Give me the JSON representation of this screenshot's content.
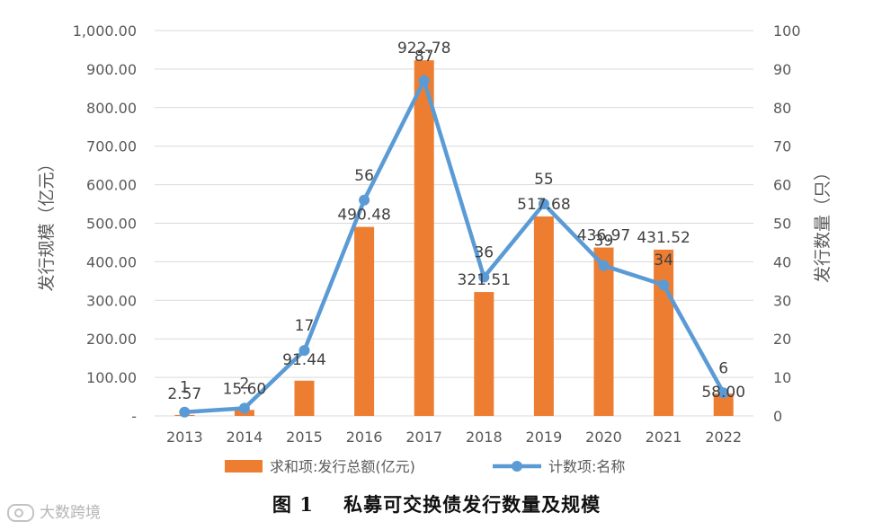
{
  "chart_data": {
    "type": "bar+line",
    "categories": [
      "2013",
      "2014",
      "2015",
      "2016",
      "2017",
      "2018",
      "2019",
      "2020",
      "2021",
      "2022"
    ],
    "series": [
      {
        "name": "求和项:发行总额(亿元)",
        "type": "bar",
        "axis": "left",
        "color": "#ed7d31",
        "values": [
          2.57,
          15.6,
          91.44,
          490.48,
          922.78,
          321.51,
          517.68,
          436.97,
          431.52,
          58.0
        ],
        "labels": [
          "2.57",
          "15.60",
          "91.44",
          "490.48",
          "922.78",
          "321.51",
          "517.68",
          "436.97",
          "431.52",
          "58.00"
        ]
      },
      {
        "name": "计数项:名称",
        "type": "line",
        "axis": "right",
        "color": "#5b9bd5",
        "values": [
          1,
          2,
          17,
          56,
          87,
          36,
          55,
          39,
          34,
          6
        ],
        "labels": [
          "1",
          "2",
          "17",
          "56",
          "87",
          "36",
          "55",
          "39",
          "34",
          "6"
        ]
      }
    ],
    "y_left": {
      "label": "发行规模（亿元）",
      "range": [
        0,
        1000
      ],
      "ticks": [
        "-",
        "100.00",
        "200.00",
        "300.00",
        "400.00",
        "500.00",
        "600.00",
        "700.00",
        "800.00",
        "900.00",
        "1,000.00"
      ]
    },
    "y_right": {
      "label": "发行数量（只）",
      "range": [
        0,
        100
      ],
      "ticks": [
        "0",
        "10",
        "20",
        "30",
        "40",
        "50",
        "60",
        "70",
        "80",
        "90",
        "100"
      ]
    },
    "grid": true,
    "legend": "bottom"
  },
  "caption": {
    "number": "图 1",
    "title": "私募可交换债发行数量及规模"
  },
  "watermark": "大数跨境"
}
